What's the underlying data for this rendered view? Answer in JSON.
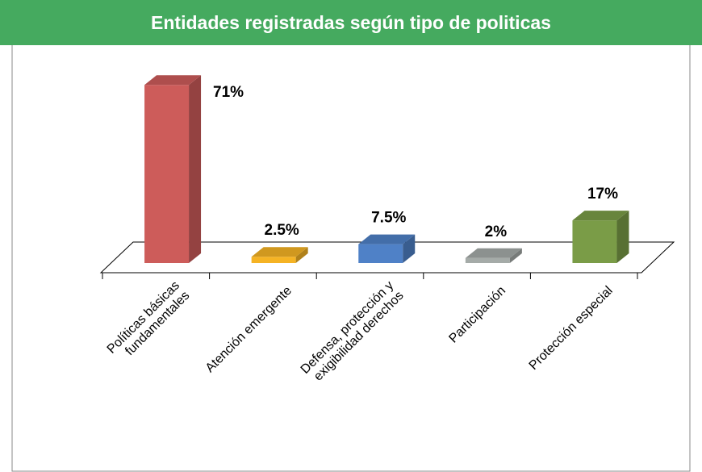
{
  "chart_data": {
    "type": "bar3d",
    "title": "Entidades registradas según tipo de politicas",
    "categories": [
      "Políticas básicas\nfundamentales",
      "Atención emergente",
      "Defensa, protección y\nexigibilidad derechos",
      "Participación",
      "Protección especial"
    ],
    "values": [
      71,
      2.5,
      7.5,
      2,
      17
    ],
    "value_labels": [
      "71%",
      "2.5%",
      "7.5%",
      "2%",
      "17%"
    ],
    "colors": [
      "#cd5c5a",
      "#f5b324",
      "#4f81c7",
      "#a5aba8",
      "#7a9c47"
    ]
  }
}
